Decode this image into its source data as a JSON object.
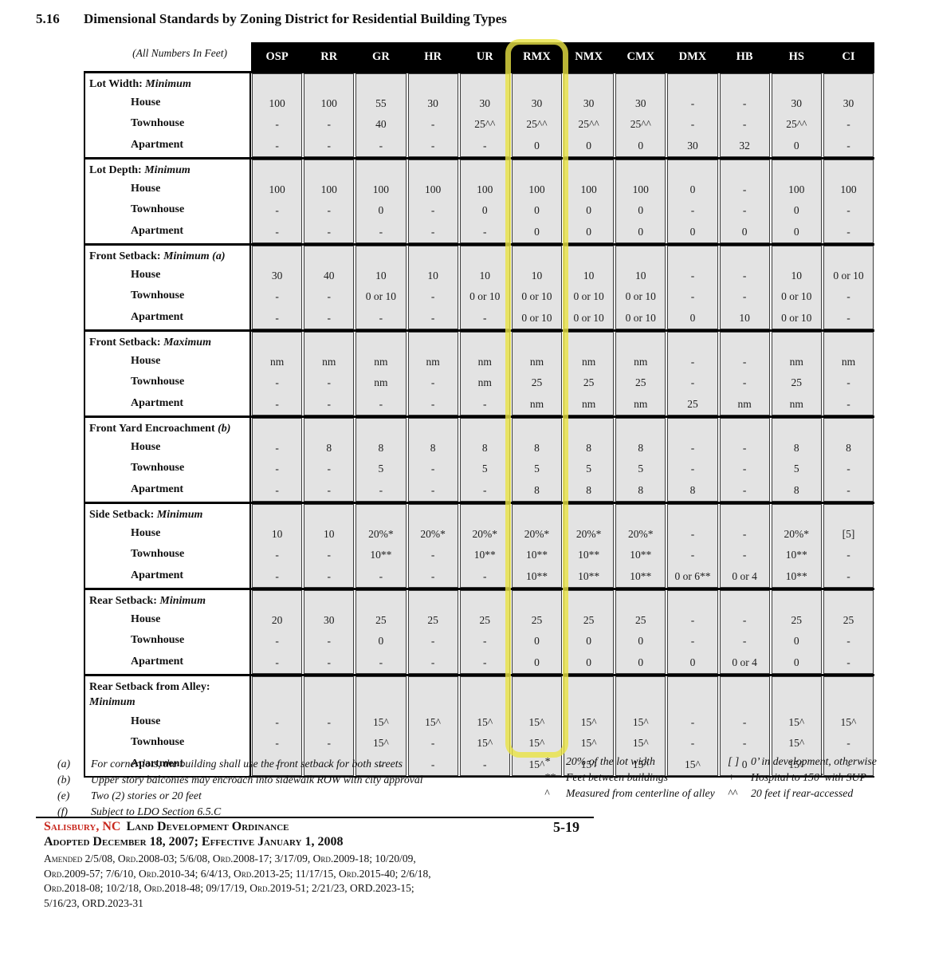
{
  "page": {
    "section_number": "5.16",
    "title": "Dimensional Standards by Zoning District for Residential Building Types",
    "page_number": "5-19"
  },
  "colors": {
    "highlight_yellow": "#e9e244",
    "header_bg": "#000000",
    "cell_gray": "#e3e3e3",
    "accent_red": "#c8281e"
  },
  "table": {
    "units_note": "(All Numbers In Feet)",
    "columns": [
      "OSP",
      "RR",
      "GR",
      "HR",
      "UR",
      "RMX",
      "NMX",
      "CMX",
      "DMX",
      "HB",
      "HS",
      "CI"
    ],
    "highlighted_column": "RMX",
    "sections": [
      {
        "label": "Lot Width:",
        "qualifier": "Minimum",
        "tall": false,
        "rows": [
          {
            "type": "House",
            "values": [
              "100",
              "100",
              "55",
              "30",
              "30",
              "30",
              "30",
              "30",
              "-",
              "-",
              "30",
              "30"
            ]
          },
          {
            "type": "Townhouse",
            "values": [
              "-",
              "-",
              "40",
              "-",
              "25^^",
              "25^^",
              "25^^",
              "25^^",
              "-",
              "-",
              "25^^",
              "-"
            ]
          },
          {
            "type": "Apartment",
            "values": [
              "-",
              "-",
              "-",
              "-",
              "-",
              "0",
              "0",
              "0",
              "30",
              "32",
              "0",
              "-"
            ]
          }
        ]
      },
      {
        "label": "Lot Depth:",
        "qualifier": "Minimum",
        "tall": false,
        "rows": [
          {
            "type": "House",
            "values": [
              "100",
              "100",
              "100",
              "100",
              "100",
              "100",
              "100",
              "100",
              "0",
              "-",
              "100",
              "100"
            ]
          },
          {
            "type": "Townhouse",
            "values": [
              "-",
              "-",
              "0",
              "-",
              "0",
              "0",
              "0",
              "0",
              "-",
              "-",
              "0",
              "-"
            ]
          },
          {
            "type": "Apartment",
            "values": [
              "-",
              "-",
              "-",
              "-",
              "-",
              "0",
              "0",
              "0",
              "0",
              "0",
              "0",
              "-"
            ]
          }
        ]
      },
      {
        "label": "Front Setback:",
        "qualifier": "Minimum (a)",
        "tall": false,
        "rows": [
          {
            "type": "House",
            "values": [
              "30",
              "40",
              "10",
              "10",
              "10",
              "10",
              "10",
              "10",
              "-",
              "-",
              "10",
              "0 or 10"
            ]
          },
          {
            "type": "Townhouse",
            "values": [
              "-",
              "-",
              "0 or 10",
              "-",
              "0 or 10",
              "0 or 10",
              "0 or 10",
              "0 or 10",
              "-",
              "-",
              "0 or 10",
              "-"
            ]
          },
          {
            "type": "Apartment",
            "values": [
              "-",
              "-",
              "-",
              "-",
              "-",
              "0 or 10",
              "0 or 10",
              "0 or 10",
              "0",
              "10",
              "0 or 10",
              "-"
            ]
          }
        ]
      },
      {
        "label": "Front Setback:",
        "qualifier": "Maximum",
        "tall": false,
        "rows": [
          {
            "type": "House",
            "values": [
              "nm",
              "nm",
              "nm",
              "nm",
              "nm",
              "nm",
              "nm",
              "nm",
              "-",
              "-",
              "nm",
              "nm"
            ]
          },
          {
            "type": "Townhouse",
            "values": [
              "-",
              "-",
              "nm",
              "-",
              "nm",
              "25",
              "25",
              "25",
              "-",
              "-",
              "25",
              "-"
            ]
          },
          {
            "type": "Apartment",
            "values": [
              "-",
              "-",
              "-",
              "-",
              "-",
              "nm",
              "nm",
              "nm",
              "25",
              "nm",
              "nm",
              "-"
            ]
          }
        ]
      },
      {
        "label": "Front Yard Encroachment",
        "qualifier": "(b)",
        "tall": false,
        "rows": [
          {
            "type": "House",
            "values": [
              "-",
              "8",
              "8",
              "8",
              "8",
              "8",
              "8",
              "8",
              "-",
              "-",
              "8",
              "8"
            ]
          },
          {
            "type": "Townhouse",
            "values": [
              "-",
              "-",
              "5",
              "-",
              "5",
              "5",
              "5",
              "5",
              "-",
              "-",
              "5",
              "-"
            ]
          },
          {
            "type": "Apartment",
            "values": [
              "-",
              "-",
              "-",
              "-",
              "-",
              "8",
              "8",
              "8",
              "8",
              "-",
              "8",
              "-"
            ]
          }
        ]
      },
      {
        "label": "Side Setback:",
        "qualifier": "Minimum",
        "tall": false,
        "rows": [
          {
            "type": "House",
            "values": [
              "10",
              "10",
              "20%*",
              "20%*",
              "20%*",
              "20%*",
              "20%*",
              "20%*",
              "-",
              "-",
              "20%*",
              "[5]"
            ]
          },
          {
            "type": "Townhouse",
            "values": [
              "-",
              "-",
              "10**",
              "-",
              "10**",
              "10**",
              "10**",
              "10**",
              "-",
              "-",
              "10**",
              "-"
            ]
          },
          {
            "type": "Apartment",
            "values": [
              "-",
              "-",
              "-",
              "-",
              "-",
              "10**",
              "10**",
              "10**",
              "0 or 6**",
              "0 or 4",
              "10**",
              "-"
            ]
          }
        ]
      },
      {
        "label": "Rear Setback:",
        "qualifier": "Minimum",
        "tall": false,
        "rows": [
          {
            "type": "House",
            "values": [
              "20",
              "30",
              "25",
              "25",
              "25",
              "25",
              "25",
              "25",
              "-",
              "-",
              "25",
              "25"
            ]
          },
          {
            "type": "Townhouse",
            "values": [
              "-",
              "-",
              "0",
              "-",
              "-",
              "0",
              "0",
              "0",
              "-",
              "-",
              "0",
              "-"
            ]
          },
          {
            "type": "Apartment",
            "values": [
              "-",
              "-",
              "-",
              "-",
              "-",
              "0",
              "0",
              "0",
              "0",
              "0 or 4",
              "0",
              "-"
            ]
          }
        ]
      },
      {
        "label": "Rear Setback from Alley:",
        "qualifier": "Minimum",
        "tall": true,
        "rows": [
          {
            "type": "House",
            "values": [
              "-",
              "-",
              "15^",
              "15^",
              "15^",
              "15^",
              "15^",
              "15^",
              "-",
              "-",
              "15^",
              "15^"
            ]
          },
          {
            "type": "Townhouse",
            "values": [
              "-",
              "-",
              "15^",
              "-",
              "15^",
              "15^",
              "15^",
              "15^",
              "-",
              "-",
              "15^",
              "-"
            ]
          },
          {
            "type": "Apartment",
            "values": [
              "-",
              "-",
              "-",
              "-",
              "-",
              "15^",
              "15^",
              "15^",
              "15^",
              "0",
              "15^",
              "-"
            ]
          }
        ]
      }
    ]
  },
  "footnotes": {
    "left": [
      {
        "marker": "(a)",
        "text": "For corner lots, the building shall use the front setback for both streets"
      },
      {
        "marker": "(b)",
        "text": "Upper story balconies may encroach into sidewalk ROW with city approval"
      },
      {
        "marker": "(e)",
        "text": "Two (2) stories or 20 feet"
      },
      {
        "marker": "(f)",
        "text": "Subject to LDO Section 6.5.C"
      }
    ],
    "middle": [
      {
        "marker": "*",
        "text": "20% of the lot width"
      },
      {
        "marker": "**",
        "text": "Feet between buildings"
      },
      {
        "marker": "^",
        "text": "Measured from centerline of alley"
      }
    ],
    "right": [
      {
        "marker": "[ ]",
        "text": "0’ in development, otherwise"
      },
      {
        "marker": "+",
        "text": "Hospital to 150’ with SUP"
      },
      {
        "marker": "^^",
        "text": "20 feet if rear-accessed"
      }
    ]
  },
  "footer": {
    "city": "Salisbury, NC",
    "ordinance": "Land Development Ordinance",
    "adopted": "Adopted December 18, 2007; Effective January 1, 2008",
    "amended_lines": [
      "Amended 2/5/08, Ord.2008-03; 5/6/08, Ord.2008-17; 3/17/09, Ord.2009-18; 10/20/09,",
      "Ord.2009-57; 7/6/10, Ord.2010-34; 6/4/13, Ord.2013-25; 11/17/15, Ord.2015-40; 2/6/18,",
      "Ord.2018-08; 10/2/18, Ord.2018-48; 09/17/19, Ord.2019-51; 2/21/23, ORD.2023-15;",
      "5/16/23, ORD.2023-31"
    ]
  }
}
